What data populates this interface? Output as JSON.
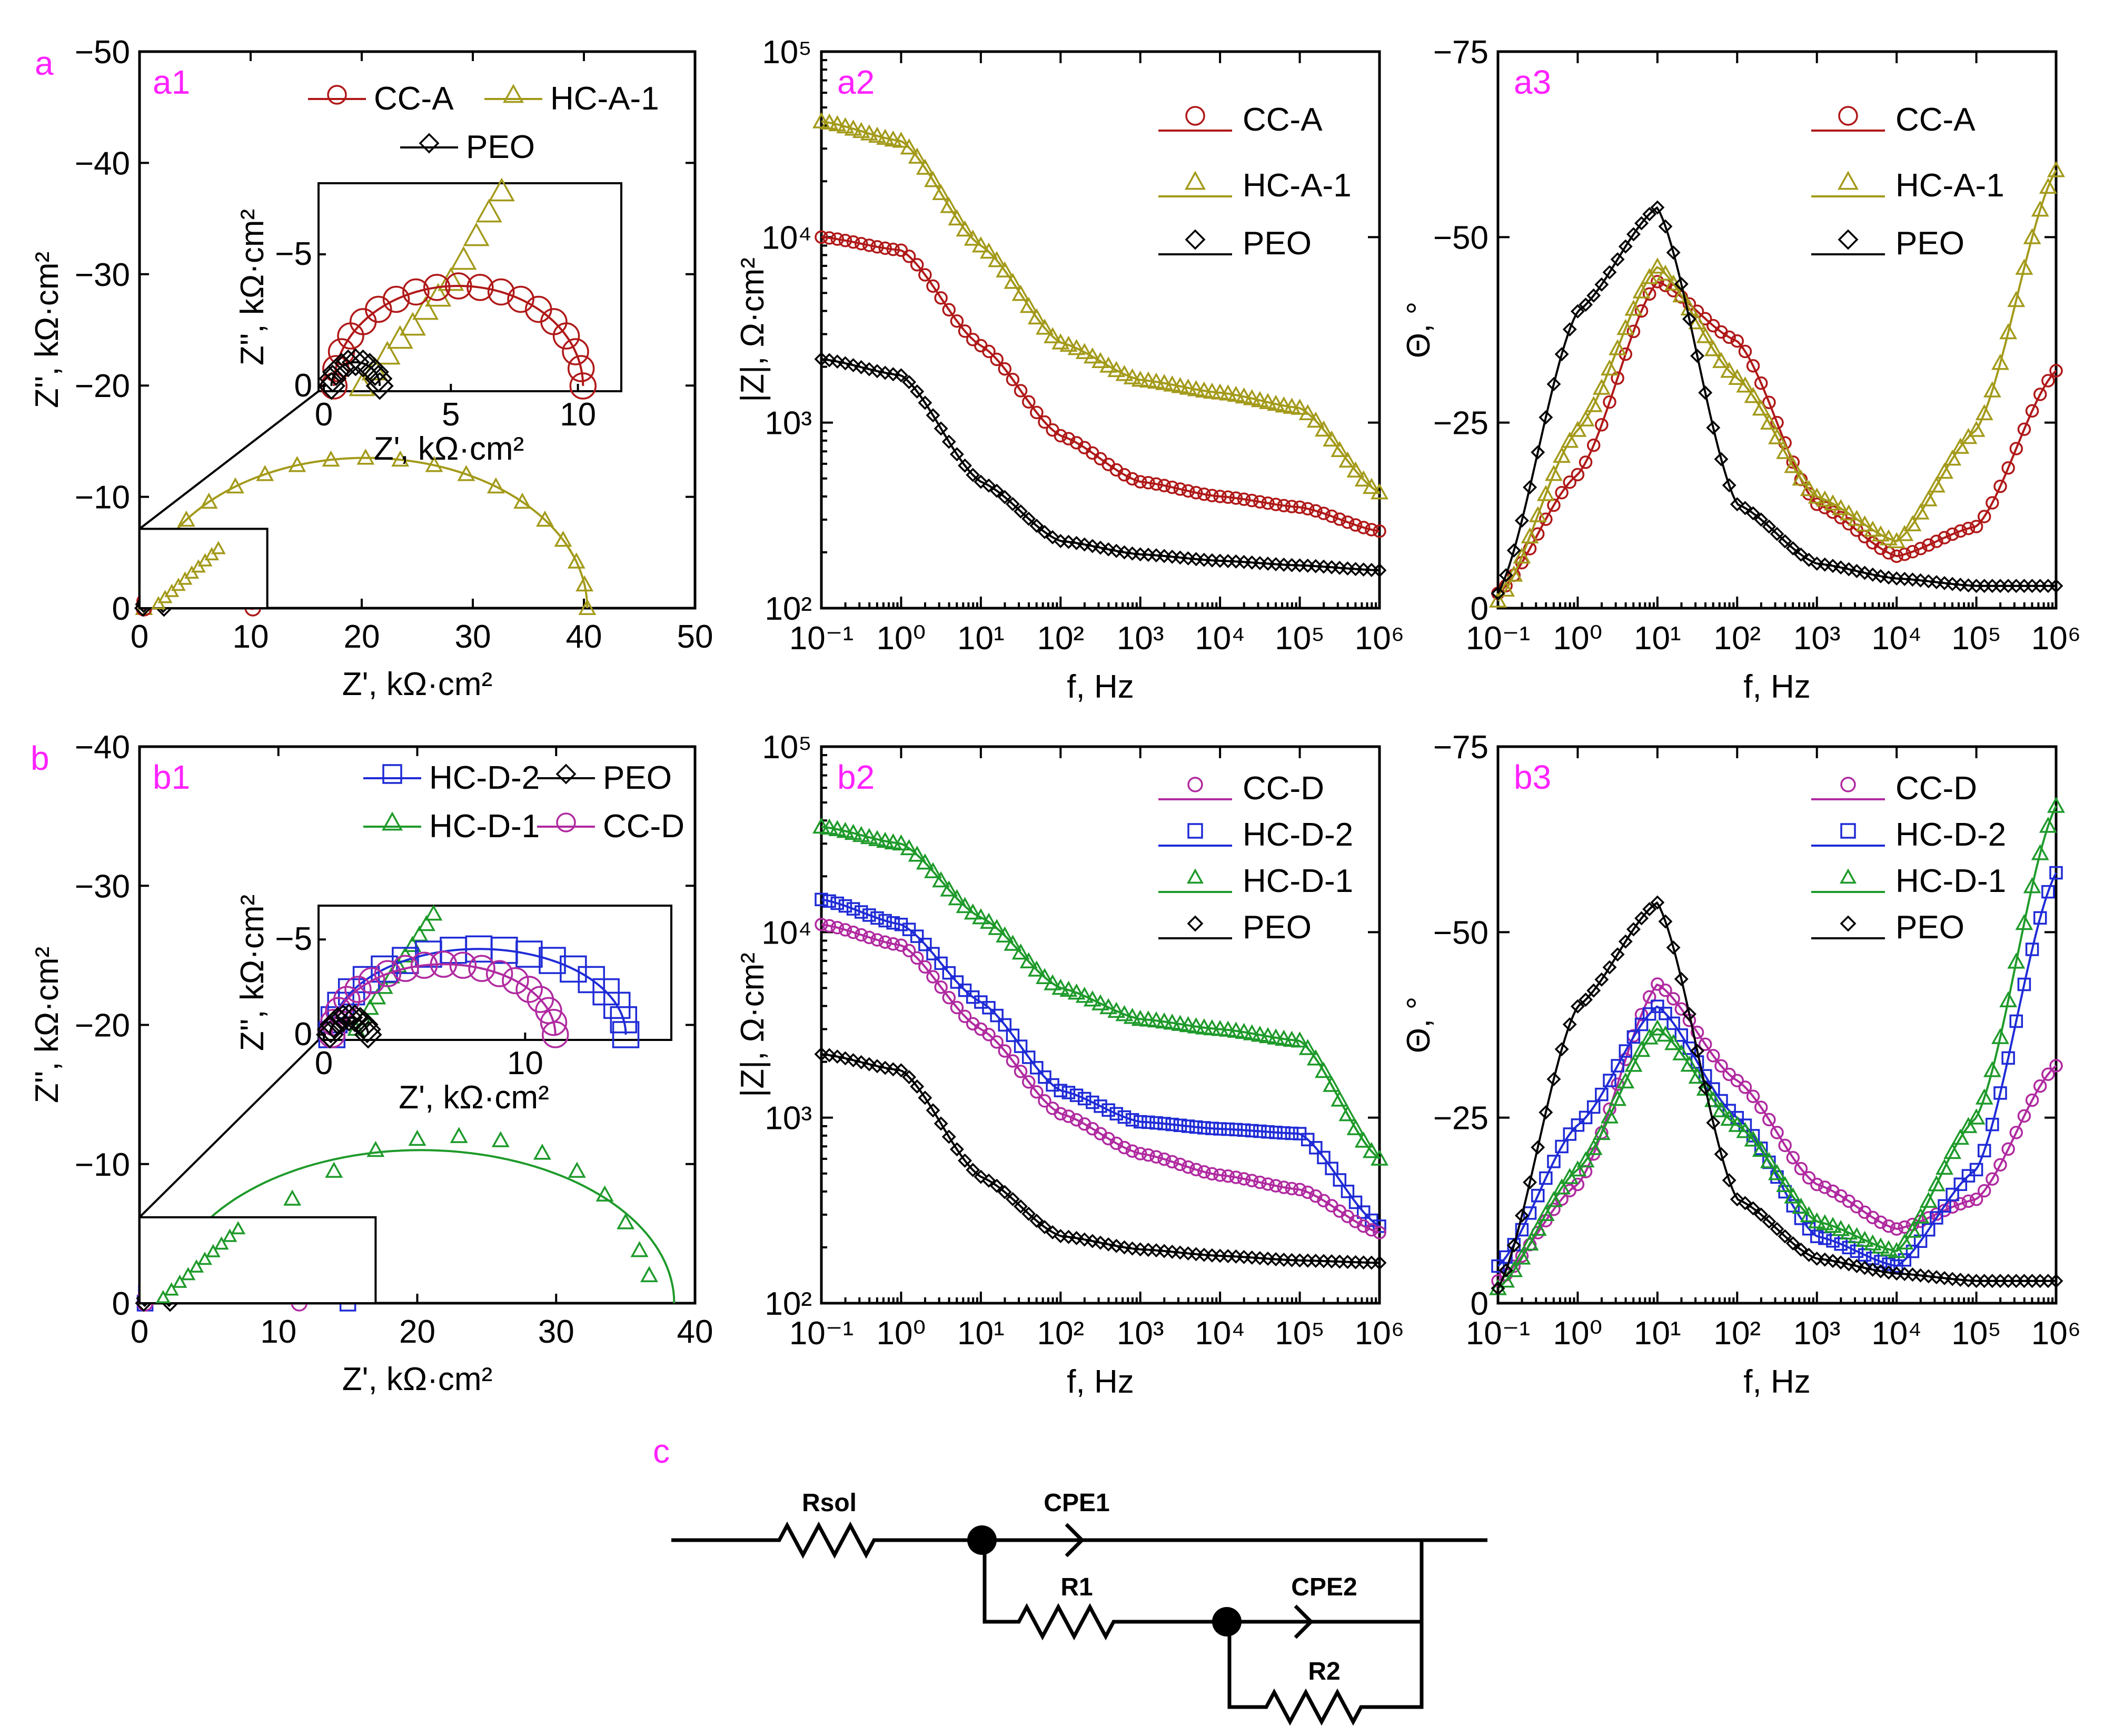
{
  "panel_labels": {
    "a": "a",
    "b": "b",
    "c": "c"
  },
  "colors": {
    "CC-A": "#b01818",
    "HC-A-1": "#a39a1a",
    "PEO": "#000000",
    "CC-D": "#b02aa0",
    "HC-D-2": "#1f2bd6",
    "HC-D-1": "#1e9a2a",
    "tag": "#ff22ff"
  },
  "chart_data": [
    {
      "id": "a1",
      "label": "a1",
      "type": "scatter",
      "xlabel": "Z', kΩ·cm²",
      "ylabel": "Z'', kΩ·cm²",
      "xlim": [
        0,
        50
      ],
      "ylim": [
        0,
        -50
      ],
      "xticks": [
        "0",
        "10",
        "20",
        "30",
        "40",
        "50"
      ],
      "yticks": [
        "0",
        "−10",
        "−20",
        "−30",
        "−40",
        "−50"
      ],
      "legend": [
        "CC-A",
        "HC-A-1",
        "PEO"
      ],
      "series": [
        {
          "name": "HC-A-1",
          "marker": "triangle",
          "arc": {
            "start": 0.4,
            "end": 40.3,
            "peak": -13.5
          }
        },
        {
          "name": "CC-A",
          "marker": "circle",
          "arc": {
            "start": 0.4,
            "end": 10.2,
            "peak": -3.8
          }
        },
        {
          "name": "PEO",
          "marker": "diamond",
          "arc": {
            "start": 0.3,
            "end": 2.2,
            "peak": -0.9
          }
        }
      ],
      "inset": {
        "xlabel": "Z', kΩ·cm²",
        "ylabel": "Z'', kΩ·cm²",
        "xlim": [
          0,
          11.5
        ],
        "ylim": [
          0,
          -7.5
        ],
        "xticks": [
          "0",
          "5",
          "10"
        ],
        "yticks": [
          "0",
          "−5"
        ],
        "triangle_points": [
          [
            1.5,
            0
          ],
          [
            2.0,
            -0.6
          ],
          [
            2.5,
            -1.2
          ],
          [
            3.0,
            -1.8
          ],
          [
            3.5,
            -2.3
          ],
          [
            4.0,
            -2.9
          ],
          [
            4.5,
            -3.4
          ],
          [
            5.0,
            -4.0
          ],
          [
            5.5,
            -4.8
          ],
          [
            6.0,
            -5.7
          ],
          [
            6.5,
            -6.6
          ],
          [
            7.0,
            -7.4
          ]
        ]
      }
    },
    {
      "id": "a2",
      "label": "a2",
      "type": "line",
      "xlabel": "f, Hz",
      "ylabel": "|Z|, Ω·cm²",
      "xscale": "log",
      "yscale": "log",
      "xlim": [
        0.1,
        1000000
      ],
      "ylim": [
        100,
        100000
      ],
      "xticks": [
        "10⁻¹",
        "10⁰",
        "10¹",
        "10²",
        "10³",
        "10⁴",
        "10⁵",
        "10⁶"
      ],
      "yticks": [
        "10²",
        "10³",
        "10⁴",
        "10⁵"
      ],
      "legend": [
        "CC-A",
        "HC-A-1",
        "PEO"
      ],
      "series": [
        {
          "name": "HC-A-1",
          "marker": "triangle",
          "x": [
            0.1,
            1,
            10,
            100,
            1000,
            10000,
            100000,
            1000000
          ],
          "y": [
            42000,
            33000,
            9000,
            2700,
            1700,
            1450,
            1200,
            420
          ]
        },
        {
          "name": "CC-A",
          "marker": "circle",
          "x": [
            0.1,
            1,
            10,
            100,
            1000,
            10000,
            100000,
            1000000
          ],
          "y": [
            10000,
            8500,
            2600,
            850,
            480,
            400,
            350,
            260
          ]
        },
        {
          "name": "PEO",
          "marker": "diamond",
          "x": [
            0.1,
            1,
            10,
            100,
            1000,
            10000,
            100000,
            1000000
          ],
          "y": [
            2200,
            1800,
            480,
            230,
            195,
            180,
            170,
            160
          ]
        }
      ]
    },
    {
      "id": "a3",
      "label": "a3",
      "type": "line",
      "xlabel": "f, Hz",
      "ylabel": "Θ, °",
      "xscale": "log",
      "xlim": [
        0.1,
        1000000
      ],
      "ylim": [
        0,
        -75
      ],
      "xticks": [
        "10⁻¹",
        "10⁰",
        "10¹",
        "10²",
        "10³",
        "10⁴",
        "10⁵",
        "10⁶"
      ],
      "yticks": [
        "0",
        "−25",
        "−50",
        "−75"
      ],
      "legend": [
        "CC-A",
        "HC-A-1",
        "PEO"
      ],
      "series": [
        {
          "name": "CC-A",
          "marker": "circle",
          "x": [
            0.1,
            1,
            10,
            100,
            1000,
            10000,
            100000,
            1000000
          ],
          "y": [
            -2,
            -18,
            -44,
            -36,
            -14,
            -7,
            -11,
            -32
          ]
        },
        {
          "name": "HC-A-1",
          "marker": "triangle",
          "x": [
            0.1,
            1,
            10,
            100,
            1000,
            10000,
            100000,
            1000000
          ],
          "y": [
            -1,
            -24,
            -46,
            -31,
            -15,
            -9,
            -24,
            -59
          ]
        },
        {
          "name": "PEO",
          "marker": "diamond",
          "x": [
            0.1,
            1,
            10,
            100,
            1000,
            10000,
            100000,
            1000000
          ],
          "y": [
            -2,
            -40,
            -54,
            -14,
            -6,
            -4,
            -3,
            -3
          ]
        }
      ]
    },
    {
      "id": "b1",
      "label": "b1",
      "type": "scatter",
      "xlabel": "Z', kΩ·cm²",
      "ylabel": "Z'', kΩ·cm²",
      "xlim": [
        0,
        40
      ],
      "ylim": [
        0,
        -40
      ],
      "xticks": [
        "0",
        "10",
        "20",
        "30",
        "40"
      ],
      "yticks": [
        "0",
        "−10",
        "−20",
        "−30",
        "−40"
      ],
      "legend": [
        "HC-D-2",
        "PEO",
        "HC-D-1",
        "CC-D"
      ],
      "series": [
        {
          "name": "HC-D-1",
          "marker": "triangle",
          "arc": {
            "start": 2.0,
            "end": 38.5,
            "peak": -11.0
          },
          "points": [
            [
              3,
              -1
            ],
            [
              5,
              -3
            ],
            [
              8,
              -5.5
            ],
            [
              11,
              -7.5
            ],
            [
              14,
              -9.5
            ],
            [
              17,
              -11
            ],
            [
              20,
              -11.8
            ],
            [
              23,
              -12
            ],
            [
              26,
              -11.7
            ],
            [
              29,
              -10.8
            ],
            [
              31.5,
              -9.5
            ],
            [
              33.5,
              -7.8
            ],
            [
              35,
              -5.8
            ],
            [
              36,
              -3.8
            ],
            [
              36.7,
              -2
            ]
          ]
        },
        {
          "name": "HC-D-2",
          "marker": "square",
          "arc": {
            "start": 0.4,
            "end": 15.0,
            "peak": -4.5
          }
        },
        {
          "name": "CC-D",
          "marker": "circle",
          "arc": {
            "start": 0.4,
            "end": 11.5,
            "peak": -3.7
          }
        },
        {
          "name": "PEO",
          "marker": "diamond",
          "arc": {
            "start": 0.3,
            "end": 2.2,
            "peak": -0.9
          }
        }
      ],
      "inset": {
        "xlabel": "Z', kΩ·cm²",
        "ylabel": "Z'', kΩ·cm²",
        "xlim": [
          0,
          17
        ],
        "ylim": [
          0,
          -6.5
        ],
        "xticks": [
          "0",
          "10"
        ],
        "yticks": [
          "0",
          "−5"
        ]
      }
    },
    {
      "id": "b2",
      "label": "b2",
      "type": "line",
      "xlabel": "f, Hz",
      "ylabel": "|Z|, Ω·cm²",
      "xscale": "log",
      "yscale": "log",
      "xlim": [
        0.1,
        1000000
      ],
      "ylim": [
        100,
        100000
      ],
      "xticks": [
        "10⁻¹",
        "10⁰",
        "10¹",
        "10²",
        "10³",
        "10⁴",
        "10⁵",
        "10⁶"
      ],
      "yticks": [
        "10²",
        "10³",
        "10⁴",
        "10⁵"
      ],
      "legend": [
        "CC-D",
        "HC-D-2",
        "HC-D-1",
        "PEO"
      ],
      "series": [
        {
          "name": "HC-D-1",
          "marker": "triangle",
          "x": [
            0.1,
            1,
            10,
            100,
            1000,
            10000,
            100000,
            1000000
          ],
          "y": [
            37000,
            30000,
            12000,
            5000,
            3400,
            3000,
            2600,
            600
          ]
        },
        {
          "name": "HC-D-2",
          "marker": "square",
          "x": [
            0.1,
            1,
            10,
            100,
            1000,
            10000,
            100000,
            1000000
          ],
          "y": [
            15000,
            11000,
            4200,
            1400,
            950,
            870,
            820,
            260
          ]
        },
        {
          "name": "CC-D",
          "marker": "circle",
          "x": [
            0.1,
            1,
            10,
            100,
            1000,
            10000,
            100000,
            1000000
          ],
          "y": [
            11000,
            8500,
            3000,
            1050,
            640,
            490,
            410,
            240
          ]
        },
        {
          "name": "PEO",
          "marker": "diamond",
          "x": [
            0.1,
            1,
            10,
            100,
            1000,
            10000,
            100000,
            1000000
          ],
          "y": [
            2200,
            1800,
            480,
            230,
            195,
            180,
            170,
            165
          ]
        }
      ]
    },
    {
      "id": "b3",
      "label": "b3",
      "type": "line",
      "xlabel": "f, Hz",
      "ylabel": "Θ, °",
      "xscale": "log",
      "xlim": [
        0.1,
        1000000
      ],
      "ylim": [
        0,
        -75
      ],
      "xticks": [
        "10⁻¹",
        "10⁰",
        "10¹",
        "10²",
        "10³",
        "10⁴",
        "10⁵",
        "10⁶"
      ],
      "yticks": [
        "0",
        "−25",
        "−50",
        "−75"
      ],
      "legend": [
        "CC-D",
        "HC-D-2",
        "HC-D-1",
        "PEO"
      ],
      "series": [
        {
          "name": "CC-D",
          "marker": "circle",
          "x": [
            0.1,
            1,
            10,
            100,
            1000,
            10000,
            100000,
            1000000
          ],
          "y": [
            -3,
            -16,
            -43,
            -30,
            -16,
            -10,
            -14,
            -32
          ]
        },
        {
          "name": "HC-D-2",
          "marker": "square",
          "x": [
            0.1,
            1,
            10,
            100,
            1000,
            10000,
            100000,
            1000000
          ],
          "y": [
            -5,
            -24,
            -40,
            -25,
            -9,
            -5,
            -18,
            -58
          ]
        },
        {
          "name": "HC-D-1",
          "marker": "triangle",
          "x": [
            0.1,
            1,
            10,
            100,
            1000,
            10000,
            100000,
            1000000
          ],
          "y": [
            -2,
            -18,
            -37,
            -24,
            -11,
            -7,
            -25,
            -67
          ]
        },
        {
          "name": "PEO",
          "marker": "diamond",
          "x": [
            0.1,
            1,
            10,
            100,
            1000,
            10000,
            100000,
            1000000
          ],
          "y": [
            -2,
            -40,
            -54,
            -14,
            -6,
            -4,
            -3,
            -3
          ]
        }
      ]
    }
  ],
  "circuit": {
    "label": "c",
    "rsol": "Rsol",
    "cpe1": "CPE1",
    "r1": "R1",
    "cpe2": "CPE2",
    "r2": "R2"
  }
}
